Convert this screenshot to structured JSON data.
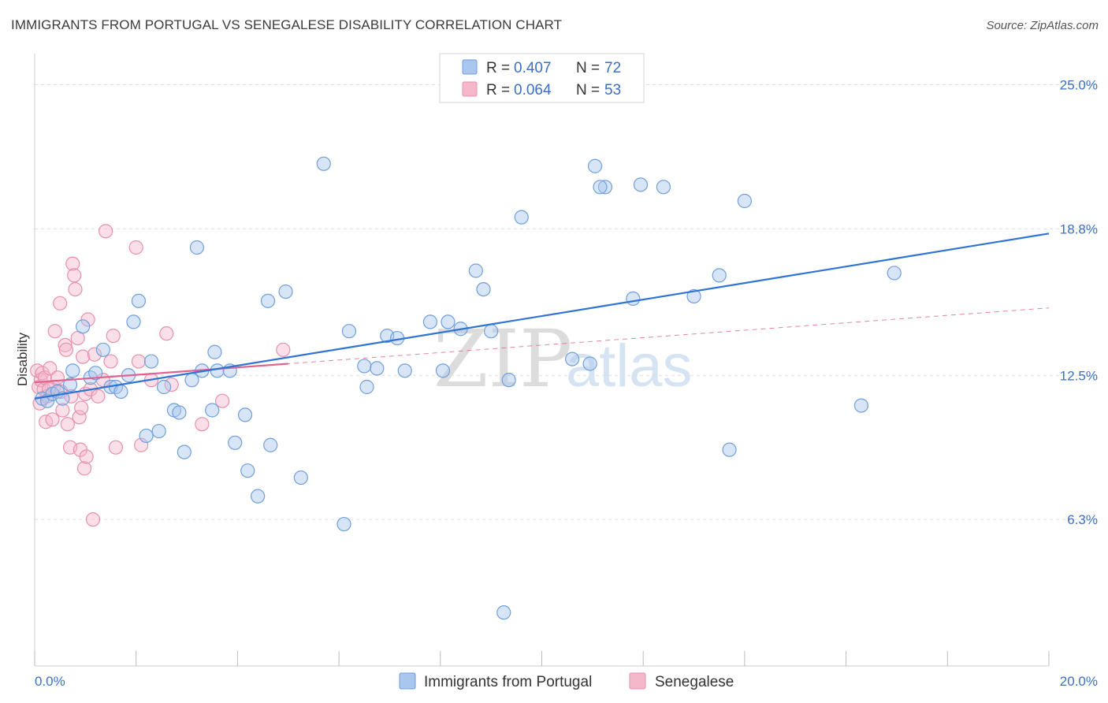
{
  "title": "IMMIGRANTS FROM PORTUGAL VS SENEGALESE DISABILITY CORRELATION CHART",
  "source": "Source: ZipAtlas.com",
  "watermark": {
    "zip": "ZIP",
    "atlas": "atlas"
  },
  "colors": {
    "blue_fill": "#a9c6ee",
    "blue_stroke": "#6f9fdc",
    "blue_line": "#2f73d3",
    "pink_fill": "#f5b8cb",
    "pink_stroke": "#e890ab",
    "pink_line": "#e0638f",
    "grid": "#dddddd",
    "axis_text": "#3a6fc8"
  },
  "legend": {
    "rows": [
      {
        "r_label": "R = ",
        "r_value": "0.407",
        "n_label": "N = ",
        "n_value": "72"
      },
      {
        "r_label": "R = ",
        "r_value": "0.064",
        "n_label": "N = ",
        "n_value": "53"
      }
    ]
  },
  "bottom_legend": [
    "Immigrants from Portugal",
    "Senegalese"
  ],
  "chart_data": {
    "type": "scatter",
    "title": "IMMIGRANTS FROM PORTUGAL VS SENEGALESE DISABILITY CORRELATION CHART",
    "xlabel": "",
    "ylabel": "Disability",
    "xlim": [
      0,
      20
    ],
    "ylim": [
      0,
      26
    ],
    "x_tick_labels": [
      {
        "value": 0,
        "label": "0.0%"
      },
      {
        "value": 20,
        "label": "20.0%"
      }
    ],
    "y_tick_labels": [
      {
        "value": 25.0,
        "label": "25.0%"
      },
      {
        "value": 18.8,
        "label": "18.8%"
      },
      {
        "value": 12.5,
        "label": "12.5%"
      },
      {
        "value": 6.3,
        "label": "6.3%"
      }
    ],
    "series": [
      {
        "name": "Immigrants from Portugal",
        "R": 0.407,
        "N": 72,
        "trend": {
          "x": [
            0.0,
            20.0
          ],
          "y": [
            11.5,
            18.6
          ],
          "style": "solid"
        },
        "points": [
          [
            0.15,
            11.5
          ],
          [
            0.25,
            11.4
          ],
          [
            0.35,
            11.7
          ],
          [
            0.45,
            11.8
          ],
          [
            0.55,
            11.5
          ],
          [
            0.7,
            12.1
          ],
          [
            0.75,
            12.7
          ],
          [
            0.95,
            14.6
          ],
          [
            1.1,
            12.4
          ],
          [
            1.2,
            12.6
          ],
          [
            1.35,
            13.6
          ],
          [
            1.5,
            12.0
          ],
          [
            1.6,
            12.0
          ],
          [
            1.7,
            11.8
          ],
          [
            1.85,
            12.5
          ],
          [
            1.95,
            14.8
          ],
          [
            2.05,
            15.7
          ],
          [
            2.2,
            9.9
          ],
          [
            2.3,
            13.1
          ],
          [
            2.45,
            10.1
          ],
          [
            2.55,
            12.0
          ],
          [
            2.75,
            11.0
          ],
          [
            2.85,
            10.9
          ],
          [
            2.95,
            9.2
          ],
          [
            3.1,
            12.3
          ],
          [
            3.2,
            18.0
          ],
          [
            3.3,
            12.7
          ],
          [
            3.5,
            11.0
          ],
          [
            3.55,
            13.5
          ],
          [
            3.6,
            12.7
          ],
          [
            3.85,
            12.7
          ],
          [
            3.95,
            9.6
          ],
          [
            4.15,
            10.8
          ],
          [
            4.2,
            8.4
          ],
          [
            4.4,
            7.3
          ],
          [
            4.6,
            15.7
          ],
          [
            4.65,
            9.5
          ],
          [
            4.95,
            16.1
          ],
          [
            5.25,
            8.1
          ],
          [
            5.7,
            21.6
          ],
          [
            6.1,
            6.1
          ],
          [
            6.2,
            14.4
          ],
          [
            6.5,
            12.9
          ],
          [
            6.55,
            12.0
          ],
          [
            6.75,
            12.8
          ],
          [
            6.95,
            14.2
          ],
          [
            7.15,
            14.1
          ],
          [
            7.3,
            12.7
          ],
          [
            7.8,
            14.8
          ],
          [
            8.05,
            12.7
          ],
          [
            8.15,
            14.8
          ],
          [
            8.4,
            14.5
          ],
          [
            8.7,
            17.0
          ],
          [
            8.85,
            16.2
          ],
          [
            9.0,
            14.4
          ],
          [
            9.25,
            2.3
          ],
          [
            9.35,
            12.3
          ],
          [
            9.6,
            19.3
          ],
          [
            10.6,
            13.2
          ],
          [
            10.95,
            13.0
          ],
          [
            11.05,
            21.5
          ],
          [
            11.25,
            20.6
          ],
          [
            11.15,
            20.6
          ],
          [
            11.95,
            20.7
          ],
          [
            12.4,
            20.6
          ],
          [
            11.8,
            15.8
          ],
          [
            13.0,
            15.9
          ],
          [
            13.5,
            16.8
          ],
          [
            13.7,
            9.3
          ],
          [
            14.0,
            20.0
          ],
          [
            16.3,
            11.2
          ],
          [
            16.95,
            16.9
          ]
        ]
      },
      {
        "name": "Senegalese",
        "R": 0.064,
        "N": 53,
        "trend": {
          "x": [
            0.0,
            5.0
          ],
          "y": [
            12.2,
            13.0
          ],
          "style": "solid"
        },
        "trend_extended": {
          "x": [
            0.0,
            20.0
          ],
          "y": [
            12.2,
            15.4
          ],
          "style": "dashed"
        },
        "points": [
          [
            0.05,
            12.7
          ],
          [
            0.08,
            12.0
          ],
          [
            0.1,
            11.3
          ],
          [
            0.12,
            12.3
          ],
          [
            0.15,
            12.6
          ],
          [
            0.18,
            11.9
          ],
          [
            0.2,
            12.4
          ],
          [
            0.22,
            10.5
          ],
          [
            0.25,
            11.6
          ],
          [
            0.3,
            12.8
          ],
          [
            0.35,
            10.6
          ],
          [
            0.38,
            12.0
          ],
          [
            0.4,
            14.4
          ],
          [
            0.45,
            12.4
          ],
          [
            0.5,
            15.6
          ],
          [
            0.52,
            11.8
          ],
          [
            0.55,
            11.0
          ],
          [
            0.6,
            13.8
          ],
          [
            0.62,
            13.6
          ],
          [
            0.65,
            10.4
          ],
          [
            0.7,
            9.4
          ],
          [
            0.72,
            11.6
          ],
          [
            0.75,
            17.3
          ],
          [
            0.78,
            16.8
          ],
          [
            0.8,
            16.2
          ],
          [
            0.85,
            14.1
          ],
          [
            0.88,
            10.7
          ],
          [
            0.9,
            9.3
          ],
          [
            0.92,
            11.1
          ],
          [
            0.95,
            13.3
          ],
          [
            0.98,
            8.5
          ],
          [
            1.0,
            11.7
          ],
          [
            1.02,
            9.0
          ],
          [
            1.05,
            14.9
          ],
          [
            1.1,
            11.9
          ],
          [
            1.15,
            6.3
          ],
          [
            1.18,
            13.4
          ],
          [
            1.25,
            11.6
          ],
          [
            1.35,
            12.3
          ],
          [
            1.4,
            18.7
          ],
          [
            1.5,
            13.1
          ],
          [
            1.55,
            14.2
          ],
          [
            1.6,
            9.4
          ],
          [
            2.0,
            18.0
          ],
          [
            2.05,
            13.1
          ],
          [
            2.1,
            9.5
          ],
          [
            2.3,
            12.3
          ],
          [
            2.6,
            14.3
          ],
          [
            2.7,
            12.1
          ],
          [
            3.3,
            10.4
          ],
          [
            3.7,
            11.4
          ],
          [
            4.9,
            13.6
          ],
          [
            0.28,
            11.9
          ]
        ]
      }
    ]
  }
}
